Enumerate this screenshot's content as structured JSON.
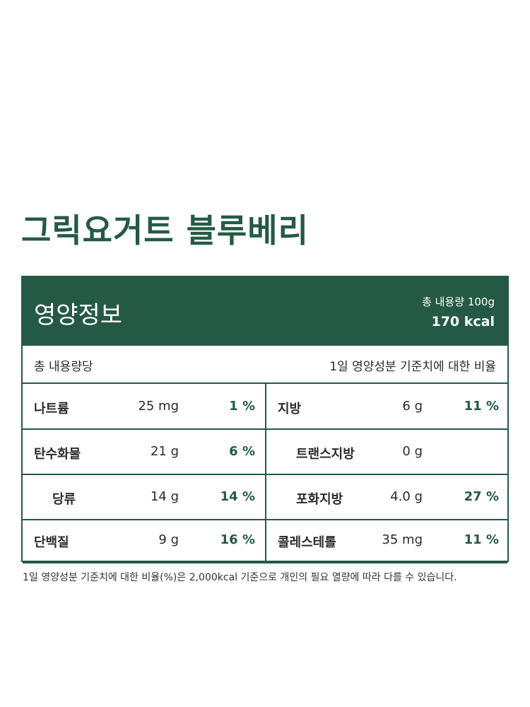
{
  "title": "그릭요거트 블루베리",
  "header": {
    "label": "영양정보",
    "total": "총 내용량 100g",
    "kcal": "170 kcal"
  },
  "table": {
    "left_caption": "총 내용량당",
    "right_caption": "1일 영양성분 기준치에 대한 비율",
    "rows": [
      {
        "left": {
          "name": "나트륨",
          "amount": "25 mg",
          "percent": "1 %"
        },
        "right": {
          "name": "지방",
          "amount": "6 g",
          "percent": "11 %"
        }
      },
      {
        "left": {
          "name": "탄수화물",
          "amount": "21 g",
          "percent": "6 %"
        },
        "right": {
          "name": "트랜스지방",
          "amount": "0 g"
        }
      },
      {
        "left": {
          "name": "당류",
          "amount": "14 g",
          "percent": "14 %"
        },
        "right": {
          "name": "포화지방",
          "amount": "4.0 g",
          "percent": "27 %"
        }
      },
      {
        "left": {
          "name": "단백질",
          "amount": "9 g",
          "percent": "16 %"
        },
        "right": {
          "name": "콜레스테롤",
          "amount": "35 mg",
          "percent": "11 %"
        }
      }
    ]
  },
  "footnote": "1일 영양성분 기준치에 대한 비율(%)은 2,000kcal 기준으로 개인의 필요 열량에 따라 다를 수 있습니다."
}
